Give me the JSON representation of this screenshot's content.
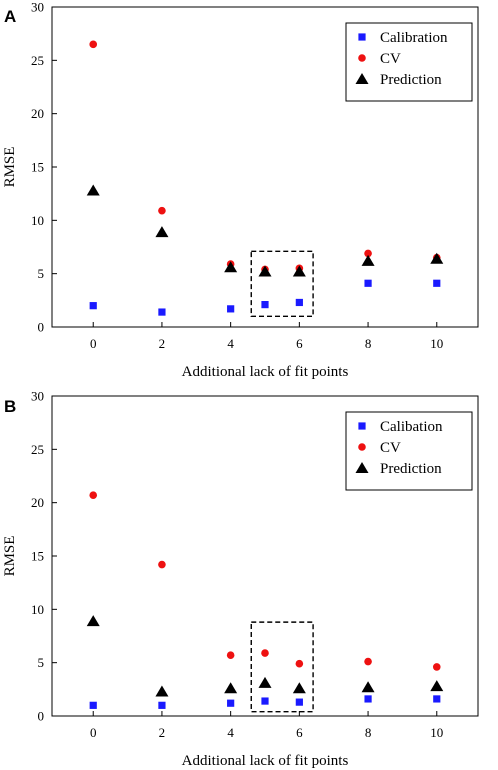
{
  "chart_data": [
    {
      "panel_label": "A",
      "type": "scatter",
      "xlabel": "Additional lack of fit points",
      "ylabel": "RMSE",
      "xlim": [
        -1.2,
        11.2
      ],
      "ylim": [
        0,
        30
      ],
      "xticks": [
        0,
        2,
        4,
        6,
        8,
        10
      ],
      "yticks": [
        0,
        5,
        10,
        15,
        20,
        25,
        30
      ],
      "legend_position": "top-right",
      "highlight_box": {
        "x": [
          4.6,
          6.4
        ],
        "y": [
          1.0,
          7.1
        ]
      },
      "series": [
        {
          "name": "Calibration",
          "marker": "square",
          "color": "#1a1aff",
          "x": [
            0,
            2,
            4,
            5,
            6,
            8,
            10
          ],
          "y": [
            2.0,
            1.4,
            1.7,
            2.1,
            2.3,
            4.1,
            4.1
          ]
        },
        {
          "name": "CV",
          "marker": "circle",
          "color": "#ee1111",
          "x": [
            0,
            2,
            4,
            5,
            6,
            8,
            10
          ],
          "y": [
            26.5,
            10.9,
            5.9,
            5.4,
            5.5,
            6.9,
            6.5
          ]
        },
        {
          "name": "Prediction",
          "marker": "triangle",
          "color": "#000000",
          "x": [
            0,
            2,
            4,
            5,
            6,
            8,
            10
          ],
          "y": [
            12.8,
            8.9,
            5.6,
            5.2,
            5.2,
            6.2,
            6.4
          ]
        }
      ]
    },
    {
      "panel_label": "B",
      "type": "scatter",
      "xlabel": "Additional lack of fit points",
      "ylabel": "RMSE",
      "xlim": [
        -1.2,
        11.2
      ],
      "ylim": [
        0,
        30
      ],
      "xticks": [
        0,
        2,
        4,
        6,
        8,
        10
      ],
      "yticks": [
        0,
        5,
        10,
        15,
        20,
        25,
        30
      ],
      "legend_position": "top-right",
      "highlight_box": {
        "x": [
          4.6,
          6.4
        ],
        "y": [
          0.4,
          8.8
        ]
      },
      "series": [
        {
          "name": "Calibation",
          "marker": "square",
          "color": "#1a1aff",
          "x": [
            0,
            2,
            4,
            5,
            6,
            8,
            10
          ],
          "y": [
            1.0,
            1.0,
            1.2,
            1.4,
            1.3,
            1.6,
            1.6
          ]
        },
        {
          "name": "CV",
          "marker": "circle",
          "color": "#ee1111",
          "x": [
            0,
            2,
            4,
            5,
            6,
            8,
            10
          ],
          "y": [
            20.7,
            14.2,
            5.7,
            5.9,
            4.9,
            5.1,
            4.6
          ]
        },
        {
          "name": "Prediction",
          "marker": "triangle",
          "color": "#000000",
          "x": [
            0,
            2,
            4,
            5,
            6,
            8,
            10
          ],
          "y": [
            8.9,
            2.3,
            2.6,
            3.1,
            2.6,
            2.7,
            2.8
          ]
        }
      ]
    }
  ]
}
